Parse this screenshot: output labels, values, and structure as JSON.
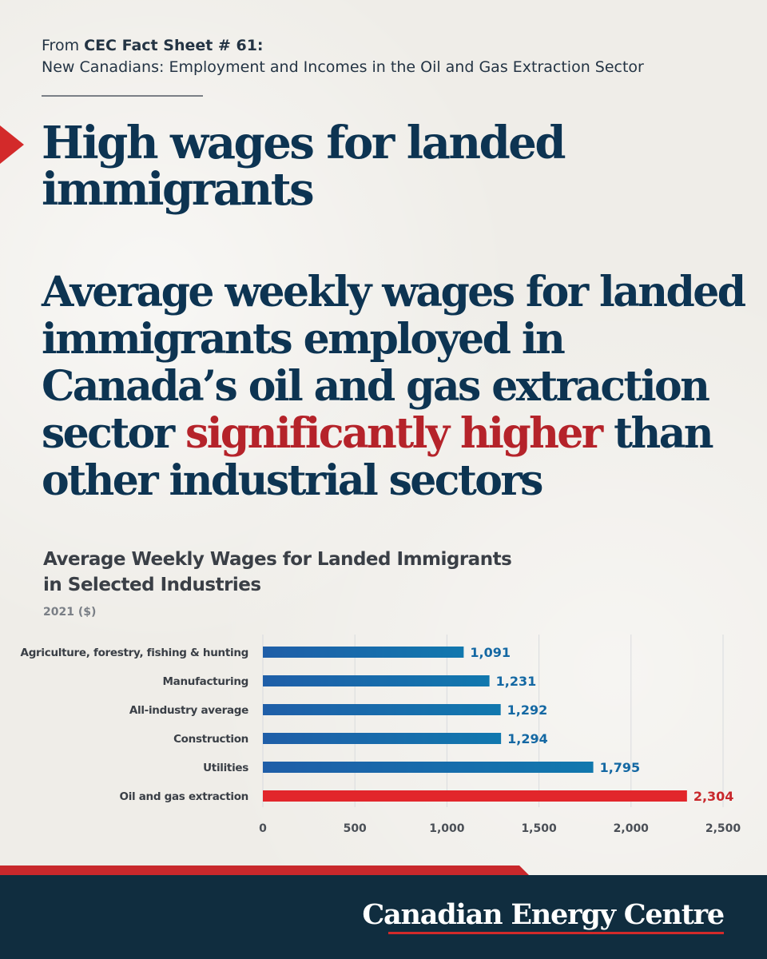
{
  "source": {
    "prefix": "From ",
    "fact_sheet": "CEC Fact Sheet # 61:",
    "title": "New Canadians: Employment and Incomes in the Oil and Gas Extraction Sector"
  },
  "headline": {
    "line1": "High wages for landed",
    "line2": "immigrants"
  },
  "subhead": {
    "before": "Average weekly wages for landed immigrants employed in Canada’s oil and gas extraction sector ",
    "accent": "significantly higher",
    "after": " than other industrial sectors"
  },
  "colors": {
    "navy": "#0d3452",
    "accent_red": "#b5232a",
    "bar_blue": "#1a5c9c",
    "bar_red": "#e2262b",
    "footer": "#102d3f"
  },
  "chart_data": {
    "type": "bar",
    "orientation": "horizontal",
    "title_line1": "Average Weekly Wages for Landed Immigrants",
    "title_line2": "in Selected Industries",
    "subtitle": "2021 ($)",
    "categories": [
      "Agriculture, forestry, fishing & hunting",
      "Manufacturing",
      "All-industry average",
      "Construction",
      "Utilities",
      "Oil and gas extraction"
    ],
    "values": [
      1091,
      1231,
      1292,
      1294,
      1795,
      2304
    ],
    "value_labels": [
      "1,091",
      "1,231",
      "1,292",
      "1,294",
      "1,795",
      "2,304"
    ],
    "highlight_index": 5,
    "xlim": [
      0,
      2500
    ],
    "xticks": [
      0,
      500,
      1000,
      1500,
      2000,
      2500
    ],
    "xtick_labels": [
      "0",
      "500",
      "1,000",
      "1,500",
      "2,000",
      "2,500"
    ],
    "grid": true
  },
  "footer": {
    "brand": "Canadian Energy Centre"
  }
}
